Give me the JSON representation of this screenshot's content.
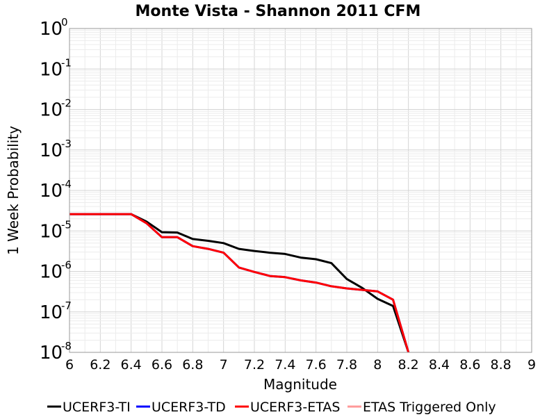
{
  "chart_data": {
    "type": "line",
    "title": "Monte Vista - Shannon 2011 CFM",
    "xlabel": "Magnitude",
    "ylabel": "1 Week Probability",
    "xlim": [
      6,
      9
    ],
    "ylim": [
      1e-08,
      1
    ],
    "yscale": "log",
    "grid": true,
    "legend_position": "bottom",
    "x_ticks": [
      "6",
      "6.2",
      "6.4",
      "6.6",
      "6.8",
      "7",
      "7.2",
      "7.4",
      "7.6",
      "7.8",
      "8",
      "8.2",
      "8.4",
      "8.6",
      "8.8",
      "9"
    ],
    "y_ticks": [
      {
        "base": "10",
        "exp": "0"
      },
      {
        "base": "10",
        "exp": "-1"
      },
      {
        "base": "10",
        "exp": "-2"
      },
      {
        "base": "10",
        "exp": "-3"
      },
      {
        "base": "10",
        "exp": "-4"
      },
      {
        "base": "10",
        "exp": "-5"
      },
      {
        "base": "10",
        "exp": "-6"
      },
      {
        "base": "10",
        "exp": "-7"
      },
      {
        "base": "10",
        "exp": "-8"
      }
    ],
    "series": [
      {
        "name": "UCERF3-TI",
        "color": "#000000",
        "x": [
          6.0,
          6.1,
          6.2,
          6.3,
          6.4,
          6.5,
          6.6,
          6.7,
          6.8,
          6.9,
          7.0,
          7.1,
          7.2,
          7.3,
          7.4,
          7.5,
          7.6,
          7.7,
          7.8,
          7.9,
          8.0,
          8.1,
          8.2
        ],
        "y": [
          2.6e-05,
          2.6e-05,
          2.6e-05,
          2.6e-05,
          2.6e-05,
          1.7e-05,
          9.3e-06,
          9.1e-06,
          6.3e-06,
          5.7e-06,
          5e-06,
          3.6e-06,
          3.2e-06,
          2.9e-06,
          2.7e-06,
          2.2e-06,
          2e-06,
          1.6e-06,
          6.5e-07,
          3.9e-07,
          2.1e-07,
          1.4e-07,
          1e-08
        ]
      },
      {
        "name": "UCERF3-TD",
        "color": "#0000ff",
        "x": [
          6.0,
          6.1,
          6.2,
          6.3,
          6.4,
          6.5,
          6.6,
          6.7,
          6.8,
          6.9,
          7.0,
          7.1,
          7.2,
          7.3,
          7.4,
          7.5,
          7.6,
          7.7,
          7.8,
          7.9,
          8.0,
          8.1,
          8.2
        ],
        "y": [
          2.6e-05,
          2.6e-05,
          2.6e-05,
          2.6e-05,
          2.6e-05,
          1.55e-05,
          7e-06,
          7e-06,
          4.2e-06,
          3.6e-06,
          2.9e-06,
          1.25e-06,
          9.7e-07,
          7.7e-07,
          7.2e-07,
          6e-07,
          5.3e-07,
          4.3e-07,
          3.8e-07,
          3.5e-07,
          3.2e-07,
          2e-07,
          1e-08
        ]
      },
      {
        "name": "UCERF3-ETAS",
        "color": "#ff0000",
        "x": [
          6.0,
          6.1,
          6.2,
          6.3,
          6.4,
          6.5,
          6.6,
          6.7,
          6.8,
          6.9,
          7.0,
          7.1,
          7.2,
          7.3,
          7.4,
          7.5,
          7.6,
          7.7,
          7.8,
          7.9,
          8.0,
          8.1,
          8.2
        ],
        "y": [
          2.6e-05,
          2.6e-05,
          2.6e-05,
          2.6e-05,
          2.6e-05,
          1.55e-05,
          7e-06,
          7e-06,
          4.2e-06,
          3.6e-06,
          2.9e-06,
          1.25e-06,
          9.7e-07,
          7.7e-07,
          7.2e-07,
          6e-07,
          5.3e-07,
          4.3e-07,
          3.8e-07,
          3.5e-07,
          3.2e-07,
          2e-07,
          1e-08
        ]
      },
      {
        "name": "ETAS Triggered Only",
        "color": "#ff9999",
        "x": [],
        "y": []
      }
    ]
  }
}
